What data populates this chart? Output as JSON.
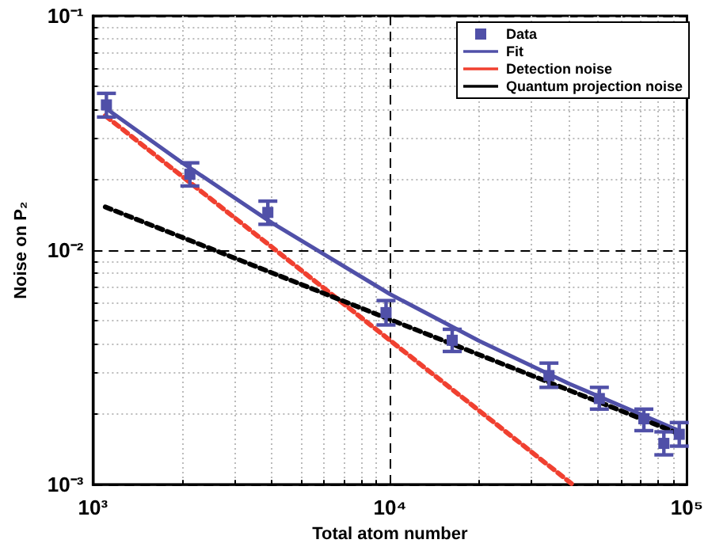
{
  "chart_data": {
    "type": "scatter",
    "xlabel": "Total atom number",
    "ylabel": "Noise on P₂",
    "log": "xy",
    "grid": true,
    "legend": "top right",
    "xlim": [
      1000,
      100000
    ],
    "xticks": [
      {
        "value": 1000,
        "label": "10³"
      },
      {
        "value": 10000,
        "label": "10⁴"
      },
      {
        "value": 100000,
        "label": "10⁵"
      }
    ],
    "ylim": [
      0.001,
      0.1
    ],
    "yticks": [
      {
        "value": 0.001,
        "label": "10⁻³"
      },
      {
        "value": 0.01,
        "label": "10⁻²"
      },
      {
        "value": 0.1,
        "label": "10⁻¹"
      }
    ],
    "series": [
      {
        "name": "Data",
        "type": "scatter",
        "color": "#5050a8",
        "marker": "square",
        "x": [
          1110,
          2120,
          3880,
          9700,
          16200,
          34300,
          50700,
          71600,
          83600,
          94200
        ],
        "values": [
          0.0417,
          0.0211,
          0.0145,
          0.00542,
          0.00413,
          0.00292,
          0.00233,
          0.00191,
          0.0015,
          0.00164
        ],
        "errors": [
          [
            0.037,
            0.0467
          ],
          [
            0.0188,
            0.0236
          ],
          [
            0.0129,
            0.0162
          ],
          [
            0.0048,
            0.0061
          ],
          [
            0.0037,
            0.0046
          ],
          [
            0.0026,
            0.0033
          ],
          [
            0.0021,
            0.0026
          ],
          [
            0.0017,
            0.0021
          ],
          [
            0.00134,
            0.00168
          ],
          [
            0.00146,
            0.00184
          ]
        ]
      },
      {
        "name": "Fit",
        "type": "line",
        "color": "#5050a8",
        "line_style": "solid",
        "x": [
          1100,
          2000,
          4000,
          10000,
          20000,
          40000,
          94000
        ],
        "values": [
          0.0405,
          0.0236,
          0.0131,
          0.0065,
          0.0041,
          0.0027,
          0.0017
        ]
      },
      {
        "name": "Detection noise",
        "type": "line",
        "color": "#f04030",
        "line_style": "dashed",
        "x": [
          1100,
          41300
        ],
        "values": [
          0.0375,
          0.001
        ]
      },
      {
        "name": "Quantum projection noise",
        "type": "line",
        "color": "#000000",
        "line_style": "dashed",
        "x": [
          1100,
          94000
        ],
        "values": [
          0.0153,
          0.00165
        ]
      }
    ]
  }
}
